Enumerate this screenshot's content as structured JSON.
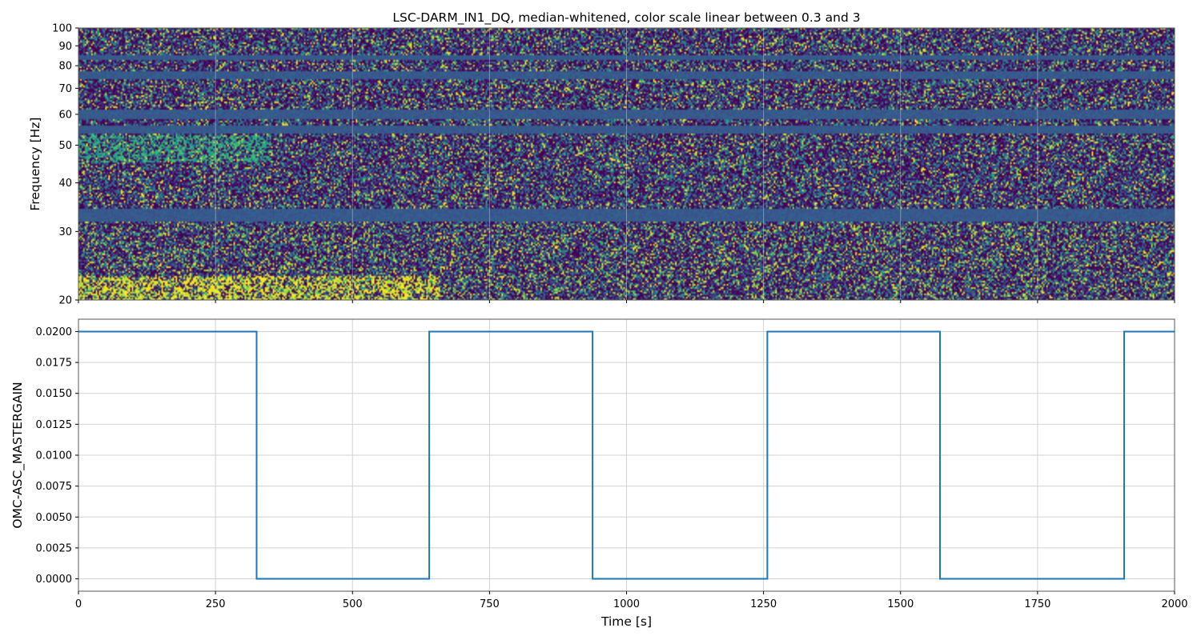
{
  "chart_data": [
    {
      "type": "heatmap",
      "title": "LSC-DARM_IN1_DQ, median-whitened, color scale linear between 0.3 and 3",
      "xlabel": "",
      "ylabel": "Frequency [Hz]",
      "xlim": [
        0,
        2000
      ],
      "ylim": [
        20,
        100
      ],
      "yscale": "log",
      "color_scale": {
        "min": 0.3,
        "max": 3,
        "scale": "linear",
        "colormap": "viridis"
      },
      "x_ticks": [
        0,
        250,
        500,
        750,
        1000,
        1250,
        1500,
        1750,
        2000
      ],
      "y_ticks": [
        "20",
        "30",
        "40",
        "50",
        "60",
        "70",
        "80",
        "90",
        "100"
      ],
      "grid": true,
      "low_noise_bands_hz": [
        {
          "center": 33,
          "width": 1.3
        },
        {
          "center": 55,
          "width": 1.2
        },
        {
          "center": 60,
          "width": 1.6
        },
        {
          "center": 76,
          "width": 1.6
        },
        {
          "center": 84,
          "width": 1.2
        }
      ],
      "excess_power_regions": [
        {
          "x": [
            0,
            660
          ],
          "freq": [
            20,
            23
          ],
          "level": 3.0
        },
        {
          "x": [
            0,
            350
          ],
          "freq": [
            45,
            53
          ],
          "level": 2.0
        }
      ]
    },
    {
      "type": "line",
      "title": "",
      "xlabel": "Time [s]",
      "ylabel": "OMC-ASC_MASTERGAIN",
      "xlim": [
        0,
        2000
      ],
      "ylim": [
        -0.001,
        0.021
      ],
      "x_ticks": [
        0,
        250,
        500,
        750,
        1000,
        1250,
        1500,
        1750,
        2000
      ],
      "y_ticks": [
        "0.0000",
        "0.0025",
        "0.0050",
        "0.0075",
        "0.0100",
        "0.0125",
        "0.0150",
        "0.0175",
        "0.0200"
      ],
      "grid": true,
      "series": [
        {
          "color": "#1f77b4",
          "x": [
            0,
            325,
            325,
            640,
            640,
            938,
            938,
            1257,
            1257,
            1572,
            1572,
            1908,
            1908,
            2000
          ],
          "y": [
            0.02,
            0.02,
            0.0,
            0.0,
            0.02,
            0.02,
            0.0,
            0.0,
            0.02,
            0.02,
            0.0,
            0.0,
            0.02,
            0.02
          ]
        }
      ]
    }
  ]
}
